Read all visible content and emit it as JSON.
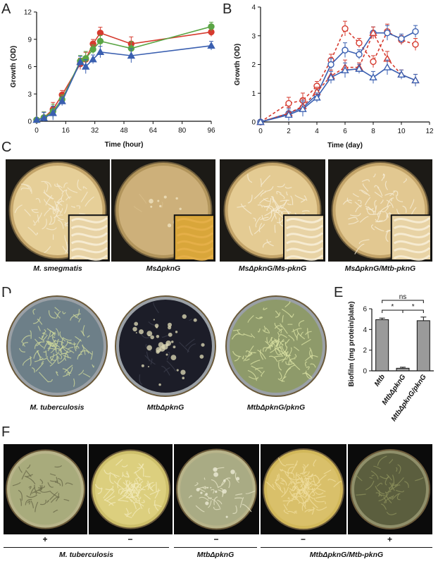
{
  "panels": {
    "A": {
      "letter": "A"
    },
    "B": {
      "letter": "B"
    },
    "C": {
      "letter": "C"
    },
    "D": {
      "letter": "D"
    },
    "E": {
      "letter": "E"
    },
    "F": {
      "letter": "F"
    }
  },
  "chart_data": [
    {
      "panel": "A",
      "type": "line",
      "xlabel": "Time (hour)",
      "ylabel": "Growth (OD)",
      "xlim": [
        0,
        96
      ],
      "ylim": [
        0,
        12
      ],
      "xticks": [
        0,
        16,
        32,
        48,
        64,
        80,
        96
      ],
      "yticks": [
        0,
        3,
        6,
        9,
        12
      ],
      "series": [
        {
          "color": "#d63b2f",
          "marker": "circle",
          "x": [
            0,
            4,
            9,
            14,
            24,
            27,
            31,
            35,
            52,
            96
          ],
          "y": [
            0.15,
            0.4,
            1.3,
            2.9,
            6.3,
            6.8,
            8.5,
            9.7,
            8.5,
            9.8
          ]
        },
        {
          "color": "#5aa545",
          "marker": "circle",
          "x": [
            0,
            4,
            9,
            14,
            24,
            27,
            31,
            35,
            52,
            96
          ],
          "y": [
            0.15,
            0.4,
            1.1,
            2.4,
            6.6,
            6.9,
            7.9,
            8.8,
            8.0,
            10.4
          ]
        },
        {
          "color": "#3a5fb0",
          "marker": "triangle",
          "x": [
            0,
            4,
            9,
            14,
            24,
            27,
            31,
            35,
            52,
            96
          ],
          "y": [
            0.15,
            0.35,
            0.9,
            2.2,
            6.5,
            6.0,
            6.8,
            7.6,
            7.2,
            8.3
          ]
        }
      ]
    },
    {
      "panel": "B",
      "type": "line",
      "xlabel": "Time (day)",
      "ylabel": "Growth (OD)",
      "xlim": [
        0,
        12
      ],
      "ylim": [
        0,
        4
      ],
      "xticks": [
        0,
        2,
        4,
        6,
        8,
        10,
        12
      ],
      "yticks": [
        0,
        1,
        2,
        3,
        4
      ],
      "series": [
        {
          "color": "#d63b2f",
          "marker": "open-circle",
          "dashed": true,
          "x": [
            0,
            2,
            3,
            4,
            5,
            6,
            7,
            8,
            9,
            10,
            11
          ],
          "y": [
            0,
            0.65,
            0.75,
            1.25,
            2.15,
            3.25,
            2.75,
            2.1,
            3.15,
            2.85,
            2.7
          ]
        },
        {
          "color": "#3a5fb0",
          "marker": "open-circle",
          "dashed": false,
          "x": [
            0,
            2,
            3,
            4,
            5,
            6,
            7,
            8,
            9,
            10,
            11
          ],
          "y": [
            0,
            0.3,
            0.5,
            0.95,
            2.0,
            2.5,
            2.35,
            3.1,
            3.1,
            2.9,
            3.15
          ]
        },
        {
          "color": "#d63b2f",
          "marker": "open-triangle",
          "dashed": true,
          "x": [
            0,
            2,
            3,
            4,
            5,
            6,
            7,
            8,
            9,
            10,
            11
          ],
          "y": [
            0,
            0.3,
            0.55,
            1.05,
            1.6,
            1.9,
            1.9,
            3.1,
            2.2,
            1.65,
            1.45
          ]
        },
        {
          "color": "#3a5fb0",
          "marker": "open-triangle",
          "dashed": false,
          "x": [
            0,
            2,
            3,
            4,
            5,
            6,
            7,
            8,
            9,
            10,
            11
          ],
          "y": [
            0,
            0.25,
            0.45,
            0.85,
            1.55,
            1.8,
            1.85,
            1.55,
            1.9,
            1.65,
            1.45
          ]
        }
      ]
    },
    {
      "panel": "E",
      "type": "bar",
      "ylabel": "Biofilm (mg protein/plate)",
      "ylim": [
        0,
        6
      ],
      "yticks": [
        0,
        2,
        4,
        6
      ],
      "categories": [
        "Mtb",
        "MtbΔpknG",
        "MtbΔpknG/pknG"
      ],
      "values": [
        4.95,
        0.25,
        4.85
      ],
      "errors": [
        0.15,
        0.1,
        0.35
      ],
      "bar_color": "#9a9a9a",
      "significance": [
        {
          "pair": [
            0,
            2
          ],
          "label": "ns"
        },
        {
          "pair": [
            0,
            1
          ],
          "label": "*"
        },
        {
          "pair": [
            1,
            2
          ],
          "label": "*"
        }
      ]
    }
  ],
  "panel_C": {
    "captions": [
      "M. smegmatis",
      "MsΔpknG",
      "MsΔpknG/Ms-pknG",
      "MsΔpknG/Mtb-pknG"
    ]
  },
  "panel_D": {
    "captions": [
      "M. tuberculosis",
      "MtbΔpknG",
      "MtbΔpknG/pknG"
    ]
  },
  "panel_F": {
    "signs": [
      "+",
      "−",
      "−",
      "−",
      "+"
    ],
    "groups": [
      "M. tuberculosis",
      "MtbΔpknG",
      "MtbΔpknG/Mtb-pknG"
    ]
  },
  "colors": {
    "red": "#d63b2f",
    "green": "#5aa545",
    "blue": "#3a5fb0",
    "plate_light": "#e3c98f",
    "plate_dark": "#1a1a24"
  }
}
